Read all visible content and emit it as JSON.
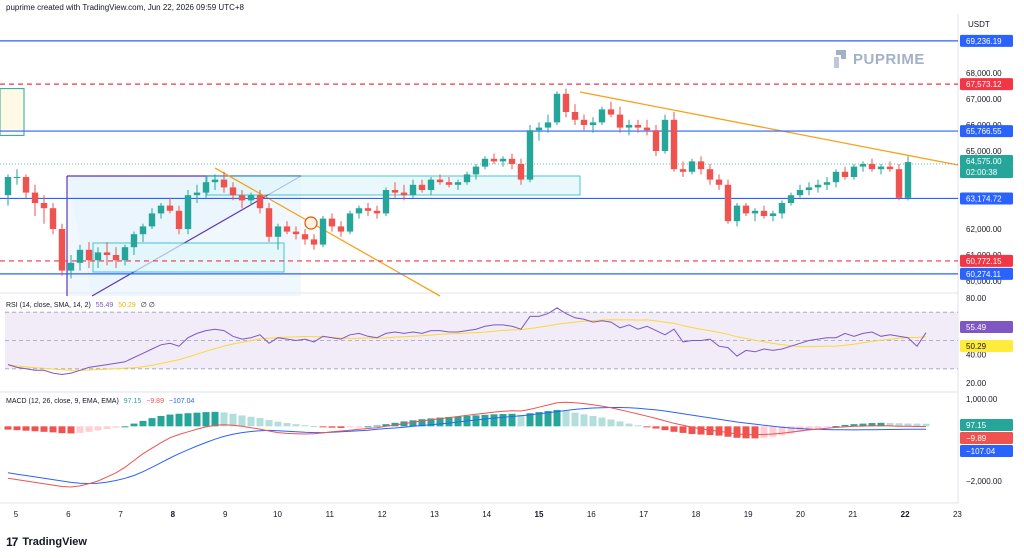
{
  "header": {
    "text": "puprime created with TradingView.com, Jun 22, 2026 09:59 UTC+8"
  },
  "axis_unit": "USDT",
  "watermark": "PUPRIME",
  "footer_logo": "TradingView",
  "colors": {
    "up": "#26a69a",
    "down": "#ef5350",
    "blue_line": "#2962ff",
    "red_dash": "#f23645",
    "orange": "#f7a21b",
    "purple": "#7e57c2",
    "rsi_band": "#ede7f6",
    "signal": "#ff9800"
  },
  "price_panel": {
    "ticks": [
      {
        "v": 68000,
        "label": "68,000.00"
      },
      {
        "v": 67000,
        "label": "67,000.00"
      },
      {
        "v": 66000,
        "label": "66,000.00"
      },
      {
        "v": 65000,
        "label": "65,000.00"
      },
      {
        "v": 62000,
        "label": "62,000.00"
      },
      {
        "v": 61000,
        "label": "61,000.00"
      },
      {
        "v": 60000,
        "label": "60,000.00"
      }
    ],
    "labels": [
      {
        "v": 69236.19,
        "label": "69,236.19",
        "bg": "#2962ff",
        "fg": "#ffffff"
      },
      {
        "v": 67573.12,
        "label": "67,573.12",
        "bg": "#f23645",
        "fg": "#ffffff"
      },
      {
        "v": 65766.55,
        "label": "65,766.55",
        "bg": "#2962ff",
        "fg": "#ffffff"
      },
      {
        "v": 64575.0,
        "label": "64,575.00",
        "bg": "#26a69a",
        "fg": "#ffffff"
      },
      {
        "v": 64380,
        "label": "02:00:38",
        "bg": "#26a69a",
        "fg": "#ffffff"
      },
      {
        "v": 63174.72,
        "label": "63,174.72",
        "bg": "#2962ff",
        "fg": "#ffffff"
      },
      {
        "v": 60772.15,
        "label": "60,772.15",
        "bg": "#f23645",
        "fg": "#ffffff"
      },
      {
        "v": 60274.11,
        "label": "60,274.11",
        "bg": "#2962ff",
        "fg": "#ffffff"
      }
    ]
  },
  "rsi_panel": {
    "legend": {
      "name": "RSI (14, close, SMA, 14, 2)",
      "rsi": "55.49",
      "sma": "50.29",
      "extra": "∅ ∅"
    },
    "ticks": [
      {
        "v": 80,
        "label": "80.00"
      },
      {
        "v": 60,
        "label": "60.00"
      },
      {
        "v": 40,
        "label": "40.00"
      },
      {
        "v": 20,
        "label": "20.00"
      }
    ],
    "labels": [
      {
        "v": 55.49,
        "label": "55.49",
        "bg": "#7e57c2",
        "fg": "#ffffff"
      },
      {
        "v": 50.29,
        "label": "50.29",
        "bg": "#ffeb3b",
        "fg": "#131722"
      }
    ]
  },
  "macd_panel": {
    "legend": {
      "name": "MACD (12, 26, close, 9, EMA, EMA)",
      "hist": "97.15",
      "macd": "−9.89",
      "signal": "−107.04"
    },
    "ticks": [
      {
        "v": 1000,
        "label": "1,000.00"
      },
      {
        "v": -2000,
        "label": "−2,000.00"
      }
    ],
    "labels": [
      {
        "v": 97.15,
        "label": "97.15",
        "bg": "#26a69a",
        "fg": "#ffffff"
      },
      {
        "v": -9.89,
        "label": "−9.89",
        "bg": "#ef5350",
        "fg": "#ffffff"
      },
      {
        "v": -107.04,
        "label": "−107.04",
        "bg": "#2962ff",
        "fg": "#ffffff"
      }
    ]
  },
  "chart_data": {
    "type": "candlestick",
    "timeframe": "4h",
    "x_ticks": [
      "5",
      "6",
      "7",
      "8",
      "9",
      "10",
      "11",
      "12",
      "13",
      "14",
      "15",
      "16",
      "17",
      "18",
      "19",
      "20",
      "21",
      "22",
      "23"
    ],
    "candles": [
      {
        "o": 63300,
        "h": 64100,
        "l": 62900,
        "c": 64000
      },
      {
        "o": 64000,
        "h": 64300,
        "l": 63700,
        "c": 64000
      },
      {
        "o": 64000,
        "h": 64100,
        "l": 63200,
        "c": 63400
      },
      {
        "o": 63400,
        "h": 63700,
        "l": 62500,
        "c": 63000
      },
      {
        "o": 63000,
        "h": 63300,
        "l": 62200,
        "c": 62800
      },
      {
        "o": 62800,
        "h": 63000,
        "l": 61800,
        "c": 62000
      },
      {
        "o": 62000,
        "h": 62200,
        "l": 60200,
        "c": 60400
      },
      {
        "o": 60400,
        "h": 61000,
        "l": 60100,
        "c": 60700
      },
      {
        "o": 60700,
        "h": 61400,
        "l": 60400,
        "c": 61200
      },
      {
        "o": 61200,
        "h": 61500,
        "l": 60500,
        "c": 60800
      },
      {
        "o": 60800,
        "h": 61300,
        "l": 60500,
        "c": 61100
      },
      {
        "o": 61100,
        "h": 61500,
        "l": 60600,
        "c": 61000
      },
      {
        "o": 61000,
        "h": 61300,
        "l": 60500,
        "c": 60800
      },
      {
        "o": 60800,
        "h": 61400,
        "l": 60600,
        "c": 61300
      },
      {
        "o": 61300,
        "h": 61900,
        "l": 61000,
        "c": 61800
      },
      {
        "o": 61800,
        "h": 62200,
        "l": 61500,
        "c": 62100
      },
      {
        "o": 62100,
        "h": 62800,
        "l": 62000,
        "c": 62600
      },
      {
        "o": 62600,
        "h": 63000,
        "l": 62400,
        "c": 62900
      },
      {
        "o": 62900,
        "h": 63200,
        "l": 62600,
        "c": 62700
      },
      {
        "o": 62700,
        "h": 62900,
        "l": 61800,
        "c": 62000
      },
      {
        "o": 62000,
        "h": 63500,
        "l": 61800,
        "c": 63300
      },
      {
        "o": 63300,
        "h": 63700,
        "l": 63000,
        "c": 63400
      },
      {
        "o": 63400,
        "h": 64000,
        "l": 63200,
        "c": 63800
      },
      {
        "o": 63800,
        "h": 64100,
        "l": 63500,
        "c": 63900
      },
      {
        "o": 63900,
        "h": 64200,
        "l": 63400,
        "c": 63600
      },
      {
        "o": 63600,
        "h": 63800,
        "l": 63100,
        "c": 63300
      },
      {
        "o": 63300,
        "h": 63500,
        "l": 62800,
        "c": 63100
      },
      {
        "o": 63100,
        "h": 63400,
        "l": 62900,
        "c": 63300
      },
      {
        "o": 63300,
        "h": 63500,
        "l": 62600,
        "c": 62800
      },
      {
        "o": 62800,
        "h": 63000,
        "l": 61500,
        "c": 61700
      },
      {
        "o": 61700,
        "h": 62200,
        "l": 61200,
        "c": 62100
      },
      {
        "o": 62100,
        "h": 62300,
        "l": 61800,
        "c": 61900
      },
      {
        "o": 61900,
        "h": 62100,
        "l": 61600,
        "c": 61800
      },
      {
        "o": 61800,
        "h": 62000,
        "l": 61400,
        "c": 61600
      },
      {
        "o": 61600,
        "h": 61800,
        "l": 61200,
        "c": 61400
      },
      {
        "o": 61400,
        "h": 62500,
        "l": 61300,
        "c": 62400
      },
      {
        "o": 62400,
        "h": 62600,
        "l": 61900,
        "c": 62100
      },
      {
        "o": 62100,
        "h": 62300,
        "l": 61700,
        "c": 61900
      },
      {
        "o": 61900,
        "h": 62700,
        "l": 61800,
        "c": 62600
      },
      {
        "o": 62600,
        "h": 62900,
        "l": 62400,
        "c": 62800
      },
      {
        "o": 62800,
        "h": 63000,
        "l": 62500,
        "c": 62700
      },
      {
        "o": 62700,
        "h": 62900,
        "l": 62400,
        "c": 62600
      },
      {
        "o": 62600,
        "h": 63600,
        "l": 62500,
        "c": 63500
      },
      {
        "o": 63500,
        "h": 63800,
        "l": 63200,
        "c": 63400
      },
      {
        "o": 63400,
        "h": 63700,
        "l": 63100,
        "c": 63300
      },
      {
        "o": 63300,
        "h": 63900,
        "l": 63200,
        "c": 63700
      },
      {
        "o": 63700,
        "h": 63900,
        "l": 63400,
        "c": 63500
      },
      {
        "o": 63500,
        "h": 64000,
        "l": 63300,
        "c": 63900
      },
      {
        "o": 63900,
        "h": 64100,
        "l": 63700,
        "c": 63800
      },
      {
        "o": 63800,
        "h": 64000,
        "l": 63600,
        "c": 63700
      },
      {
        "o": 63700,
        "h": 63900,
        "l": 63500,
        "c": 63800
      },
      {
        "o": 63800,
        "h": 64200,
        "l": 63700,
        "c": 64100
      },
      {
        "o": 64100,
        "h": 64500,
        "l": 63900,
        "c": 64400
      },
      {
        "o": 64400,
        "h": 64800,
        "l": 64300,
        "c": 64700
      },
      {
        "o": 64700,
        "h": 64900,
        "l": 64500,
        "c": 64600
      },
      {
        "o": 64600,
        "h": 64800,
        "l": 64400,
        "c": 64700
      },
      {
        "o": 64700,
        "h": 64900,
        "l": 64300,
        "c": 64500
      },
      {
        "o": 64500,
        "h": 64700,
        "l": 63700,
        "c": 63900
      },
      {
        "o": 63900,
        "h": 66000,
        "l": 63800,
        "c": 65800
      },
      {
        "o": 65800,
        "h": 66100,
        "l": 65400,
        "c": 65900
      },
      {
        "o": 65900,
        "h": 66400,
        "l": 65700,
        "c": 66100
      },
      {
        "o": 66100,
        "h": 67300,
        "l": 66000,
        "c": 67200
      },
      {
        "o": 67200,
        "h": 67400,
        "l": 66300,
        "c": 66500
      },
      {
        "o": 66500,
        "h": 66800,
        "l": 66000,
        "c": 66200
      },
      {
        "o": 66200,
        "h": 66400,
        "l": 65800,
        "c": 66000
      },
      {
        "o": 66000,
        "h": 66300,
        "l": 65700,
        "c": 66100
      },
      {
        "o": 66100,
        "h": 66700,
        "l": 66000,
        "c": 66600
      },
      {
        "o": 66600,
        "h": 66900,
        "l": 66300,
        "c": 66400
      },
      {
        "o": 66400,
        "h": 66700,
        "l": 65700,
        "c": 65900
      },
      {
        "o": 65900,
        "h": 66200,
        "l": 65600,
        "c": 66000
      },
      {
        "o": 66000,
        "h": 66200,
        "l": 65700,
        "c": 65900
      },
      {
        "o": 65900,
        "h": 66200,
        "l": 65600,
        "c": 65800
      },
      {
        "o": 65800,
        "h": 66000,
        "l": 64800,
        "c": 65000
      },
      {
        "o": 65000,
        "h": 66400,
        "l": 64900,
        "c": 66200
      },
      {
        "o": 66200,
        "h": 66500,
        "l": 64200,
        "c": 64300
      },
      {
        "o": 64300,
        "h": 64600,
        "l": 64000,
        "c": 64200
      },
      {
        "o": 64200,
        "h": 64700,
        "l": 64100,
        "c": 64600
      },
      {
        "o": 64600,
        "h": 64800,
        "l": 64100,
        "c": 64300
      },
      {
        "o": 64300,
        "h": 64500,
        "l": 63700,
        "c": 63900
      },
      {
        "o": 63900,
        "h": 64100,
        "l": 63500,
        "c": 63700
      },
      {
        "o": 63700,
        "h": 63900,
        "l": 62200,
        "c": 62300
      },
      {
        "o": 62300,
        "h": 63000,
        "l": 62100,
        "c": 62900
      },
      {
        "o": 62900,
        "h": 63000,
        "l": 62500,
        "c": 62600
      },
      {
        "o": 62600,
        "h": 62800,
        "l": 62300,
        "c": 62700
      },
      {
        "o": 62700,
        "h": 62900,
        "l": 62400,
        "c": 62500
      },
      {
        "o": 62500,
        "h": 62700,
        "l": 62300,
        "c": 62600
      },
      {
        "o": 62600,
        "h": 63100,
        "l": 62400,
        "c": 63000
      },
      {
        "o": 63000,
        "h": 63400,
        "l": 62900,
        "c": 63300
      },
      {
        "o": 63300,
        "h": 63700,
        "l": 63200,
        "c": 63500
      },
      {
        "o": 63500,
        "h": 63800,
        "l": 63300,
        "c": 63600
      },
      {
        "o": 63600,
        "h": 63900,
        "l": 63400,
        "c": 63700
      },
      {
        "o": 63700,
        "h": 64000,
        "l": 63500,
        "c": 63800
      },
      {
        "o": 63800,
        "h": 64300,
        "l": 63600,
        "c": 64200
      },
      {
        "o": 64200,
        "h": 64400,
        "l": 63900,
        "c": 64000
      },
      {
        "o": 64000,
        "h": 64500,
        "l": 63900,
        "c": 64400
      },
      {
        "o": 64400,
        "h": 64600,
        "l": 64200,
        "c": 64500
      },
      {
        "o": 64500,
        "h": 64700,
        "l": 64200,
        "c": 64300
      },
      {
        "o": 64300,
        "h": 64500,
        "l": 64100,
        "c": 64400
      },
      {
        "o": 64400,
        "h": 64600,
        "l": 64200,
        "c": 64300
      },
      {
        "o": 64300,
        "h": 64500,
        "l": 63100,
        "c": 63200
      },
      {
        "o": 63200,
        "h": 64800,
        "l": 63100,
        "c": 64575
      }
    ],
    "levels": [
      {
        "v": 69236.19,
        "style": "solid",
        "color": "#2962ff"
      },
      {
        "v": 67573.12,
        "style": "dashed",
        "color": "#f23645"
      },
      {
        "v": 65766.55,
        "style": "solid",
        "color": "#2962ff"
      },
      {
        "v": 63174.72,
        "style": "solid",
        "color": "#2962ff"
      },
      {
        "v": 60772.15,
        "style": "dashed",
        "color": "#f23645"
      },
      {
        "v": 60274.11,
        "style": "solid",
        "color": "#2962ff"
      }
    ],
    "rsi": [
      33,
      31,
      30,
      29,
      29,
      27,
      26,
      27,
      29,
      31,
      32,
      33,
      34,
      35,
      38,
      41,
      44,
      47,
      48,
      46,
      52,
      55,
      57,
      58,
      57,
      53,
      51,
      52,
      54,
      48,
      52,
      51,
      50,
      51,
      49,
      53,
      52,
      51,
      54,
      55,
      53,
      52,
      55,
      56,
      55,
      56,
      55,
      57,
      57,
      56,
      56,
      57,
      58,
      60,
      61,
      61,
      60,
      58,
      67,
      67,
      69,
      73,
      69,
      66,
      65,
      63,
      64,
      63,
      59,
      61,
      58,
      60,
      57,
      54,
      58,
      49,
      50,
      50,
      51,
      46,
      45,
      39,
      43,
      42,
      44,
      43,
      44,
      46,
      48,
      50,
      51,
      52,
      52,
      55,
      53,
      55,
      56,
      53,
      54,
      53,
      52,
      46,
      55.49
    ],
    "macd_hist": [
      -120,
      -140,
      -160,
      -180,
      -200,
      -220,
      -250,
      -260,
      -240,
      -200,
      -150,
      -100,
      -50,
      0,
      100,
      200,
      300,
      380,
      430,
      460,
      480,
      500,
      520,
      530,
      510,
      460,
      400,
      350,
      300,
      230,
      170,
      120,
      80,
      40,
      10,
      -30,
      -50,
      -60,
      -40,
      -20,
      0,
      30,
      80,
      130,
      180,
      220,
      260,
      290,
      320,
      340,
      360,
      380,
      400,
      420,
      440,
      450,
      460,
      420,
      480,
      520,
      560,
      600,
      560,
      500,
      440,
      380,
      320,
      250,
      180,
      100,
      40,
      -20,
      -80,
      -140,
      -200,
      -240,
      -280,
      -300,
      -320,
      -340,
      -380,
      -420,
      -440,
      -440,
      -420,
      -380,
      -330,
      -270,
      -200,
      -140,
      -80,
      -30,
      10,
      50,
      80,
      100,
      120,
      130,
      125,
      115,
      105,
      100,
      97.15
    ],
    "macd_line": [
      -1900,
      -1950,
      -2000,
      -2050,
      -2100,
      -2150,
      -2200,
      -2220,
      -2180,
      -2100,
      -2000,
      -1850,
      -1700,
      -1500,
      -1250,
      -1000,
      -800,
      -600,
      -420,
      -300,
      -200,
      -100,
      -20,
      40,
      60,
      40,
      0,
      -50,
      -100,
      -170,
      -230,
      -260,
      -270,
      -280,
      -270,
      -240,
      -200,
      -170,
      -140,
      -110,
      -80,
      -50,
      0,
      50,
      100,
      150,
      200,
      240,
      280,
      320,
      360,
      400,
      440,
      480,
      520,
      550,
      570,
      560,
      620,
      700,
      780,
      860,
      880,
      860,
      830,
      790,
      740,
      680,
      610,
      530,
      450,
      370,
      290,
      200,
      110,
      40,
      -30,
      -90,
      -140,
      -180,
      -230,
      -280,
      -300,
      -310,
      -300,
      -280,
      -250,
      -210,
      -170,
      -130,
      -100,
      -70,
      -40,
      -20,
      0,
      10,
      20,
      20,
      15,
      5,
      0,
      -5,
      -9.89
    ],
    "signal_line": [
      -1700,
      -1750,
      -1800,
      -1850,
      -1900,
      -1950,
      -2000,
      -2050,
      -2080,
      -2090,
      -2080,
      -2040,
      -1980,
      -1900,
      -1800,
      -1660,
      -1500,
      -1330,
      -1160,
      -1000,
      -860,
      -720,
      -590,
      -470,
      -370,
      -290,
      -230,
      -190,
      -160,
      -150,
      -160,
      -180,
      -200,
      -220,
      -230,
      -230,
      -220,
      -200,
      -180,
      -160,
      -140,
      -110,
      -80,
      -60,
      -30,
      0,
      30,
      60,
      90,
      120,
      160,
      200,
      230,
      270,
      300,
      330,
      360,
      390,
      420,
      460,
      500,
      540,
      580,
      620,
      650,
      670,
      680,
      690,
      690,
      680,
      660,
      630,
      600,
      560,
      510,
      460,
      410,
      360,
      310,
      260,
      210,
      160,
      120,
      80,
      40,
      0,
      -30,
      -60,
      -80,
      -100,
      -110,
      -120,
      -125,
      -128,
      -130,
      -128,
      -125,
      -120,
      -116,
      -113,
      -110,
      -108,
      -107.04
    ]
  }
}
